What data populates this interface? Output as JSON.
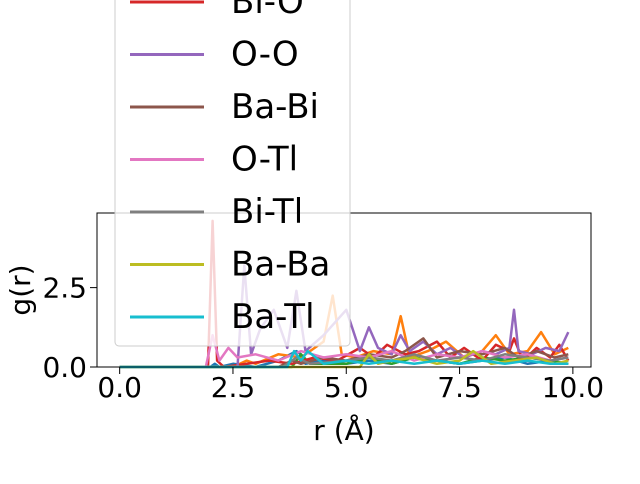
{
  "chart_data": {
    "type": "line",
    "title": "",
    "xlabel": "r (Å)",
    "ylabel": "g(r)",
    "xlim": [
      -0.5,
      10.4
    ],
    "ylim": [
      0,
      4.85
    ],
    "xticks": [
      {
        "value": 0.0,
        "label": "0.0"
      },
      {
        "value": 2.5,
        "label": "2.5"
      },
      {
        "value": 5.0,
        "label": "5.0"
      },
      {
        "value": 7.5,
        "label": "7.5"
      },
      {
        "value": 10.0,
        "label": "10.0"
      }
    ],
    "yticks": [
      {
        "value": 0.0,
        "label": "0.0"
      },
      {
        "value": 2.5,
        "label": "2.5"
      }
    ],
    "grid": false,
    "legend_position": "upper-left, extends above plot area",
    "series": [
      {
        "name": "",
        "color": "#1f77b4",
        "x": [
          0,
          1.8,
          2.0,
          2.1,
          2.2,
          2.5,
          3.0,
          3.5,
          3.9,
          4.0,
          4.1,
          4.5,
          5.0,
          5.5,
          6.0,
          6.5,
          7.0,
          7.5,
          8.0,
          8.5,
          9.0,
          9.5,
          9.9
        ],
        "y": [
          0,
          0,
          0,
          0.1,
          0,
          0.1,
          0,
          0.2,
          0.5,
          0.4,
          0.1,
          0.2,
          0.1,
          0.2,
          0.1,
          0.3,
          0.2,
          0.1,
          0.2,
          0.3,
          0.1,
          0.2,
          0.1
        ]
      },
      {
        "name": "",
        "color": "#ff7f0e",
        "x": [
          0,
          2.5,
          2.8,
          3.0,
          3.5,
          4.0,
          4.5,
          4.7,
          4.9,
          5.2,
          5.6,
          6.0,
          6.2,
          6.4,
          6.8,
          7.2,
          7.6,
          8.0,
          8.3,
          8.6,
          9.0,
          9.3,
          9.6,
          9.9
        ],
        "y": [
          0,
          0,
          0.2,
          0.1,
          0.4,
          0.3,
          0.8,
          2.25,
          0.4,
          0.3,
          0.5,
          0.4,
          1.6,
          0.3,
          0.5,
          0.8,
          0.3,
          0.5,
          1.0,
          0.4,
          0.5,
          1.1,
          0.4,
          0.6
        ]
      },
      {
        "name": "",
        "color": "#2ca02c",
        "x": [
          0,
          3.8,
          4.0,
          4.2,
          5.0,
          5.5,
          6.0,
          6.5,
          7.0,
          7.5,
          8.0,
          8.5,
          9.0,
          9.5,
          9.9
        ],
        "y": [
          0,
          0,
          0.4,
          0.1,
          0.1,
          0.3,
          0.1,
          0.3,
          0.2,
          0.1,
          0.3,
          0.2,
          0.3,
          0.2,
          0.1
        ]
      },
      {
        "name": "Bi-O",
        "color": "#d62728",
        "x": [
          0,
          1.95,
          2.05,
          2.15,
          2.3,
          2.8,
          3.3,
          3.8,
          4.3,
          4.8,
          5.3,
          5.6,
          5.9,
          6.3,
          6.6,
          7.0,
          7.3,
          7.6,
          8.0,
          8.3,
          8.6,
          8.7,
          8.9,
          9.2,
          9.5,
          9.7,
          9.9
        ],
        "y": [
          0,
          0,
          4.6,
          0.2,
          0,
          0.1,
          0.2,
          0.1,
          0.3,
          0.2,
          0.6,
          0.3,
          0.7,
          0.4,
          0.5,
          0.8,
          0.3,
          0.6,
          0.2,
          0.7,
          0.5,
          0.9,
          0.2,
          0.6,
          0.3,
          0.7,
          0.2
        ]
      },
      {
        "name": "O-O",
        "color": "#9467bd",
        "x": [
          0,
          2.6,
          2.75,
          2.9,
          3.1,
          3.4,
          3.7,
          3.9,
          4.1,
          4.5,
          5.0,
          5.3,
          5.5,
          5.7,
          6.0,
          6.2,
          6.4,
          6.7,
          7.0,
          7.3,
          7.6,
          8.0,
          8.3,
          8.6,
          8.7,
          8.8,
          9.1,
          9.4,
          9.7,
          9.9
        ],
        "y": [
          0,
          0,
          3.2,
          0.4,
          1.2,
          1.8,
          0.6,
          2.4,
          0.5,
          1.0,
          1.8,
          0.5,
          1.25,
          0.6,
          0.4,
          1.0,
          0.5,
          0.8,
          0.4,
          0.6,
          0.3,
          0.5,
          0.4,
          0.6,
          1.8,
          0.5,
          0.4,
          0.6,
          0.5,
          1.1
        ]
      },
      {
        "name": "Ba-Bi",
        "color": "#8c564b",
        "x": [
          0,
          3.5,
          3.8,
          4.0,
          4.5,
          5.0,
          5.5,
          6.0,
          6.3,
          6.7,
          7.0,
          7.5,
          8.0,
          8.5,
          8.8,
          9.2,
          9.6,
          9.9
        ],
        "y": [
          0,
          0,
          0.2,
          0.1,
          0.3,
          0.2,
          0.4,
          0.3,
          0.5,
          0.9,
          0.3,
          0.5,
          0.4,
          0.6,
          0.3,
          0.5,
          0.3,
          0.4
        ]
      },
      {
        "name": "O-Tl",
        "color": "#e377c2",
        "x": [
          0,
          1.9,
          2.05,
          2.2,
          2.4,
          2.6,
          3.0,
          3.5,
          4.0,
          4.5,
          5.0,
          5.5,
          6.0,
          6.5,
          7.0,
          7.5,
          8.0,
          8.5,
          9.0,
          9.5,
          9.9
        ],
        "y": [
          0,
          0,
          1.0,
          0.2,
          0.6,
          0.3,
          0.4,
          0.2,
          0.5,
          0.3,
          0.4,
          0.3,
          0.5,
          0.2,
          0.4,
          0.3,
          0.5,
          0.3,
          0.4,
          0.2,
          0.3
        ]
      },
      {
        "name": "Bi-Tl",
        "color": "#7f7f7f",
        "x": [
          0,
          3.6,
          3.9,
          4.2,
          5.0,
          5.5,
          6.0,
          6.5,
          7.0,
          7.5,
          8.0,
          8.5,
          9.0,
          9.5,
          9.9
        ],
        "y": [
          0,
          0,
          0.3,
          0.1,
          0.2,
          0.3,
          0.2,
          0.4,
          0.2,
          0.3,
          0.2,
          0.4,
          0.3,
          0.2,
          0.3
        ]
      },
      {
        "name": "Ba-Ba",
        "color": "#bcbd22",
        "x": [
          0,
          5.3,
          5.5,
          5.7,
          6.0,
          6.5,
          7.0,
          7.5,
          7.8,
          8.2,
          8.7,
          9.2,
          9.6,
          9.9
        ],
        "y": [
          0,
          0,
          0.4,
          0.1,
          0.2,
          0.3,
          0.1,
          0.2,
          0.5,
          0.1,
          0.2,
          0.3,
          0.1,
          0.2
        ]
      },
      {
        "name": "Ba-Tl",
        "color": "#17becf",
        "x": [
          0,
          3.7,
          3.85,
          4.0,
          4.15,
          4.5,
          5.0,
          5.5,
          6.0,
          6.5,
          7.0,
          7.5,
          8.0,
          8.5,
          9.0,
          9.5,
          9.9
        ],
        "y": [
          0,
          0,
          0.5,
          0.2,
          0.5,
          0.1,
          0.2,
          0.1,
          0.2,
          0.1,
          0.2,
          0.1,
          0.2,
          0.1,
          0.2,
          0.1,
          0.1
        ]
      }
    ],
    "legend": [
      {
        "label": "Bi-O",
        "color": "#d62728"
      },
      {
        "label": "O-O",
        "color": "#9467bd"
      },
      {
        "label": "Ba-Bi",
        "color": "#8c564b"
      },
      {
        "label": "O-Tl",
        "color": "#e377c2"
      },
      {
        "label": "Bi-Tl",
        "color": "#7f7f7f"
      },
      {
        "label": "Ba-Ba",
        "color": "#bcbd22"
      },
      {
        "label": "Ba-Tl",
        "color": "#17becf"
      }
    ]
  }
}
